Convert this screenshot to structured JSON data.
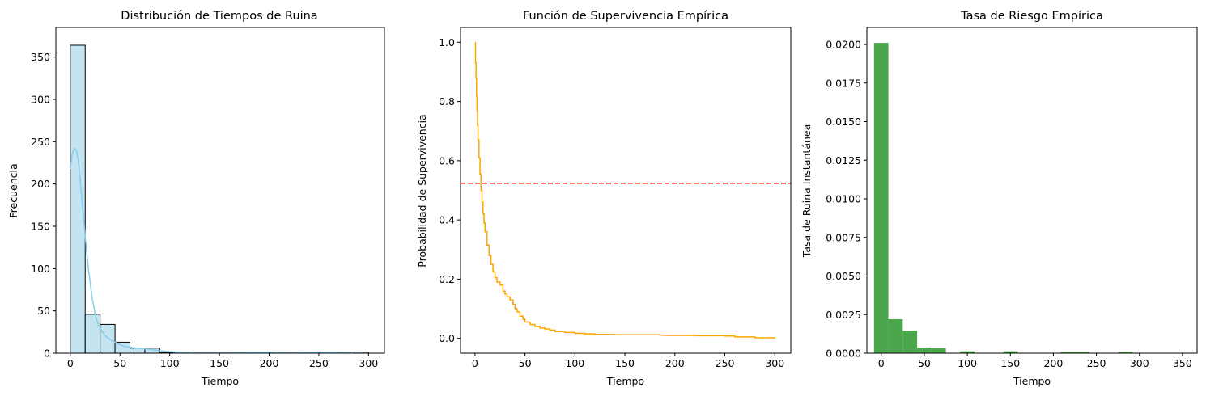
{
  "chart_data": [
    {
      "type": "bar",
      "title": "Distribución de Tiempos de Ruina",
      "xlabel": "Tiempo",
      "ylabel": "Frecuencia",
      "xlim": [
        -14.5,
        316
      ],
      "ylim": [
        0,
        385
      ],
      "xticks": [
        0,
        50,
        100,
        150,
        200,
        250,
        300
      ],
      "yticks": [
        0,
        50,
        100,
        150,
        200,
        250,
        300,
        350
      ],
      "bin_width": 15,
      "bin_start": 0,
      "bar_color": "#c5e4f2",
      "edge_color": "#000000",
      "kde_color": "#87ceeb",
      "values": [
        364,
        46,
        34,
        13,
        6,
        6,
        1,
        1,
        0,
        0,
        0,
        0,
        0,
        0,
        0,
        0,
        0,
        0,
        0,
        1
      ],
      "kde": {
        "x": [
          0,
          2,
          4,
          6,
          8,
          10,
          12,
          15,
          18,
          22,
          26,
          30,
          35,
          40,
          45,
          50,
          55,
          60,
          70,
          80,
          90,
          100,
          110,
          120,
          130,
          140,
          150,
          160,
          170,
          180,
          190,
          200,
          210,
          220,
          230,
          240,
          250,
          260,
          270,
          280,
          290,
          300
        ],
        "y": [
          218,
          235,
          242,
          240,
          228,
          205,
          178,
          138,
          102,
          65,
          41,
          29,
          21,
          16,
          13,
          10,
          8,
          7,
          5.5,
          4.5,
          3,
          1.8,
          1,
          0.6,
          0.3,
          0.2,
          0.2,
          0.3,
          0.5,
          0.8,
          1.1,
          0.9,
          0.5,
          0.4,
          0.6,
          1.0,
          1.3,
          1.0,
          0.6,
          0.3,
          0.2,
          0.1
        ]
      }
    },
    {
      "type": "line",
      "title": "Función de Supervivencia Empírica",
      "xlabel": "Tiempo",
      "ylabel": "Probabilidad de Supervivencia",
      "xlim": [
        -14.5,
        316
      ],
      "ylim": [
        -0.05,
        1.05
      ],
      "xticks": [
        0,
        50,
        100,
        150,
        200,
        250,
        300
      ],
      "yticks": [
        0.0,
        0.2,
        0.4,
        0.6,
        0.8,
        1.0
      ],
      "line_color": "#ffa500",
      "hline": {
        "y": 0.524,
        "color": "#ff0000"
      },
      "x": [
        0,
        0.5,
        1,
        1.5,
        2,
        2.5,
        3,
        4,
        5,
        6,
        7,
        8,
        9,
        10,
        12,
        14,
        16,
        18,
        20,
        22,
        25,
        28,
        30,
        32,
        35,
        38,
        40,
        42,
        45,
        48,
        50,
        55,
        60,
        65,
        70,
        75,
        80,
        90,
        100,
        110,
        120,
        140,
        160,
        180,
        185,
        190,
        200,
        220,
        250,
        260,
        280,
        300
      ],
      "y": [
        1.0,
        0.93,
        0.88,
        0.82,
        0.77,
        0.72,
        0.67,
        0.61,
        0.555,
        0.5,
        0.46,
        0.42,
        0.39,
        0.36,
        0.315,
        0.28,
        0.25,
        0.225,
        0.205,
        0.19,
        0.18,
        0.16,
        0.15,
        0.14,
        0.13,
        0.115,
        0.1,
        0.09,
        0.075,
        0.065,
        0.055,
        0.047,
        0.04,
        0.035,
        0.032,
        0.028,
        0.023,
        0.02,
        0.017,
        0.015,
        0.013,
        0.012,
        0.012,
        0.012,
        0.011,
        0.01,
        0.01,
        0.009,
        0.008,
        0.005,
        0.002,
        0.0
      ]
    },
    {
      "type": "bar",
      "title": "Tasa de Riesgo Empírica",
      "xlabel": "Tiempo",
      "ylabel": "Tasa de Ruina Instantánea",
      "xlim": [
        -16.7,
        367
      ],
      "ylim": [
        0,
        0.0211
      ],
      "xticks": [
        0,
        50,
        100,
        150,
        200,
        250,
        300,
        350
      ],
      "yticks": [
        "0.0000",
        "0.0025",
        "0.0050",
        "0.0075",
        "0.0100",
        "0.0125",
        "0.0150",
        "0.0175",
        "0.0200"
      ],
      "bar_color": "#4ca64c",
      "bin_width": 16.7,
      "bin_start": -8.4,
      "values": [
        0.0201,
        0.0022,
        0.00145,
        0.00037,
        0.00033,
        0.0,
        0.00012,
        0.0,
        0.0,
        0.00012,
        0.0,
        0.0,
        0.0,
        8e-05,
        8e-05,
        0.0,
        0.0,
        8e-05,
        0.0,
        0.0,
        0.0,
        0.0
      ]
    }
  ]
}
